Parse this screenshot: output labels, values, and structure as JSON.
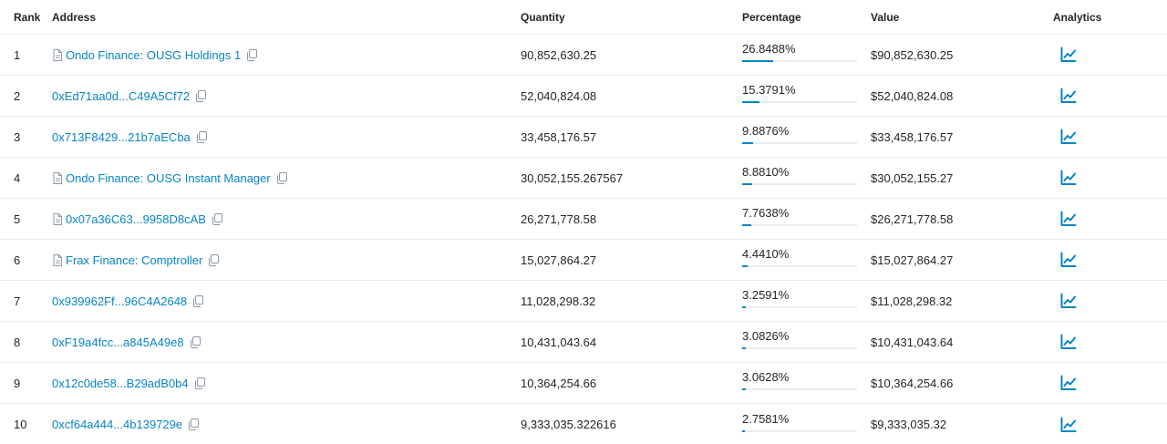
{
  "headers": {
    "rank": "Rank",
    "address": "Address",
    "quantity": "Quantity",
    "percentage": "Percentage",
    "value": "Value",
    "analytics": "Analytics"
  },
  "colors": {
    "link": "#0784c3",
    "bar_track": "#e9ecef",
    "bar_fill": "#0784c3"
  },
  "rows": [
    {
      "rank": "1",
      "address": "Ondo Finance: OUSG Holdings 1",
      "has_doc_icon": true,
      "quantity": "90,852,630.25",
      "percentage": "26.8488%",
      "pct_value": 26.8488,
      "value": "$90,852,630.25"
    },
    {
      "rank": "2",
      "address": "0xEd71aa0d...C49A5Cf72",
      "has_doc_icon": false,
      "quantity": "52,040,824.08",
      "percentage": "15.3791%",
      "pct_value": 15.3791,
      "value": "$52,040,824.08"
    },
    {
      "rank": "3",
      "address": "0x713F8429...21b7aECba",
      "has_doc_icon": false,
      "quantity": "33,458,176.57",
      "percentage": "9.8876%",
      "pct_value": 9.8876,
      "value": "$33,458,176.57"
    },
    {
      "rank": "4",
      "address": "Ondo Finance: OUSG Instant Manager",
      "has_doc_icon": true,
      "quantity": "30,052,155.267567",
      "percentage": "8.8810%",
      "pct_value": 8.881,
      "value": "$30,052,155.27"
    },
    {
      "rank": "5",
      "address": "0x07a36C63...9958D8cAB",
      "has_doc_icon": true,
      "quantity": "26,271,778.58",
      "percentage": "7.7638%",
      "pct_value": 7.7638,
      "value": "$26,271,778.58"
    },
    {
      "rank": "6",
      "address": "Frax Finance: Comptroller",
      "has_doc_icon": true,
      "quantity": "15,027,864.27",
      "percentage": "4.4410%",
      "pct_value": 4.441,
      "value": "$15,027,864.27"
    },
    {
      "rank": "7",
      "address": "0x939962Ff...96C4A2648",
      "has_doc_icon": false,
      "quantity": "11,028,298.32",
      "percentage": "3.2591%",
      "pct_value": 3.2591,
      "value": "$11,028,298.32"
    },
    {
      "rank": "8",
      "address": "0xF19a4fcc...a845A49e8",
      "has_doc_icon": false,
      "quantity": "10,431,043.64",
      "percentage": "3.0826%",
      "pct_value": 3.0826,
      "value": "$10,431,043.64"
    },
    {
      "rank": "9",
      "address": "0x12c0de58...B29adB0b4",
      "has_doc_icon": false,
      "quantity": "10,364,254.66",
      "percentage": "3.0628%",
      "pct_value": 3.0628,
      "value": "$10,364,254.66"
    },
    {
      "rank": "10",
      "address": "0xcf64a444...4b139729e",
      "has_doc_icon": false,
      "quantity": "9,333,035.322616",
      "percentage": "2.7581%",
      "pct_value": 2.7581,
      "value": "$9,333,035.32"
    }
  ]
}
